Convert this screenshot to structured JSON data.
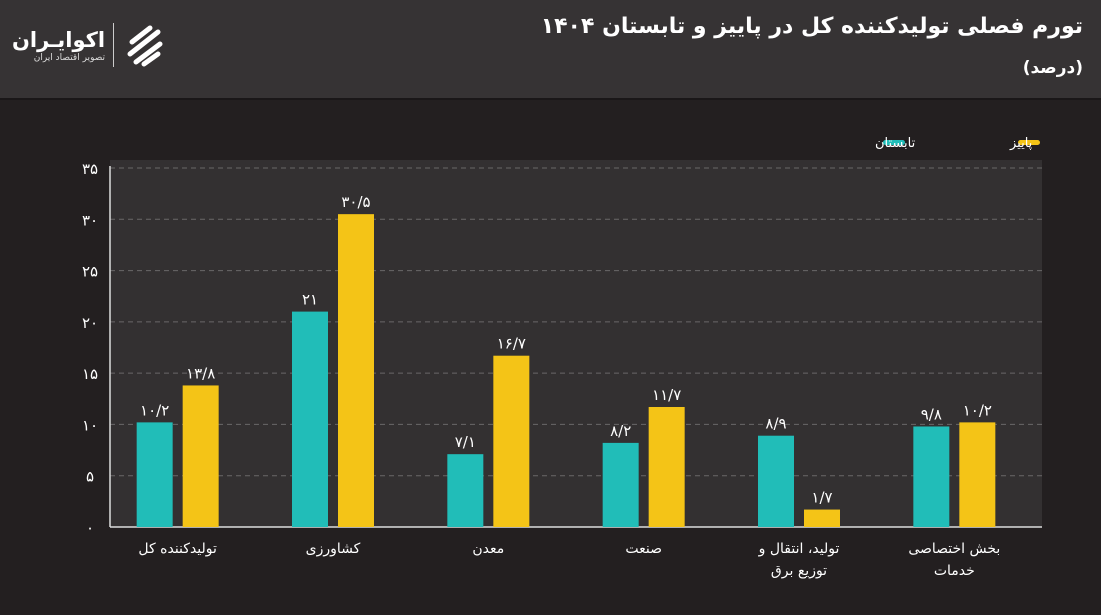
{
  "header": {
    "title": "تورم فصلی تولیدکننده کل در پاییز و تابستان ۱۴۰۴",
    "subtitle": "(درصد)"
  },
  "logo": {
    "name": "اکوایـران",
    "tagline": "تصویر اقتصاد ایران"
  },
  "chart_data": {
    "type": "bar",
    "title": "تورم فصلی تولیدکننده کل در پاییز و تابستان ۱۴۰۴",
    "ylabel": "(درصد)",
    "ylim": [
      0,
      35
    ],
    "yticks": [
      0,
      5,
      10,
      15,
      20,
      25,
      30,
      35
    ],
    "ytick_labels": [
      "۰",
      "۵",
      "۱۰",
      "۱۵",
      "۲۰",
      "۲۵",
      "۳۰",
      "۳۵"
    ],
    "grid": true,
    "legend_position": "top-right",
    "categories": [
      [
        "تولیدکننده کل"
      ],
      [
        "کشاورزی"
      ],
      [
        "معدن"
      ],
      [
        "صنعت"
      ],
      [
        "تولید، انتقال و",
        "توزیع برق"
      ],
      [
        "بخش اختصاصی",
        "خدمات"
      ]
    ],
    "series": [
      {
        "name": "تابستان",
        "color": "#21bdb8",
        "values": [
          10.2,
          21,
          7.1,
          8.2,
          8.9,
          9.8
        ],
        "labels": [
          "۱۰/۲",
          "۲۱",
          "۷/۱",
          "۸/۲",
          "۸/۹",
          "۹/۸"
        ]
      },
      {
        "name": "پاییز",
        "color": "#f4c417",
        "values": [
          13.8,
          30.5,
          16.7,
          11.7,
          1.7,
          10.2
        ],
        "labels": [
          "۱۳/۸",
          "۳۰/۵",
          "۱۶/۷",
          "۱۱/۷",
          "۱/۷",
          "۱۰/۲"
        ]
      }
    ]
  }
}
